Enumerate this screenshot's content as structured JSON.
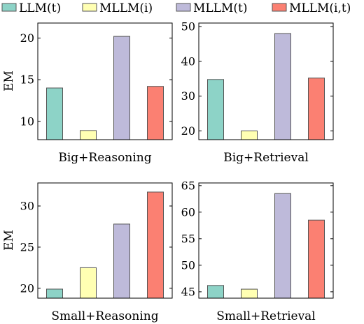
{
  "legend": {
    "entries": [
      {
        "label": "LLM(t)",
        "color": "#8dd3c7"
      },
      {
        "label": "MLLM(i)",
        "color": "#ffffb3"
      },
      {
        "label": "MLLM(t)",
        "color": "#bebada"
      },
      {
        "label": "MLLM(i,t)",
        "color": "#fb8072"
      }
    ]
  },
  "chart_data": [
    {
      "type": "bar",
      "xlabel": "Big+Reasoning",
      "ylabel": "EM",
      "categories": [
        "LLM(t)",
        "MLLM(i)",
        "MLLM(t)",
        "MLLM(i,t)"
      ],
      "values": [
        14.0,
        8.9,
        20.2,
        14.2
      ],
      "ylim": [
        7.8,
        21.8
      ],
      "yticks": [
        10,
        15,
        20
      ]
    },
    {
      "type": "bar",
      "xlabel": "Big+Retrieval",
      "ylabel": "",
      "categories": [
        "LLM(t)",
        "MLLM(i)",
        "MLLM(t)",
        "MLLM(i,t)"
      ],
      "values": [
        34.8,
        20.0,
        48.0,
        35.2
      ],
      "ylim": [
        17.5,
        51.0
      ],
      "yticks": [
        20,
        30,
        40,
        50
      ]
    },
    {
      "type": "bar",
      "xlabel": "Small+Reasoning",
      "ylabel": "EM",
      "categories": [
        "LLM(t)",
        "MLLM(i)",
        "MLLM(t)",
        "MLLM(i,t)"
      ],
      "values": [
        19.9,
        22.5,
        27.8,
        31.7
      ],
      "ylim": [
        18.8,
        32.8
      ],
      "yticks": [
        20,
        25,
        30
      ]
    },
    {
      "type": "bar",
      "xlabel": "Small+Retrieval",
      "ylabel": "",
      "categories": [
        "LLM(t)",
        "MLLM(i)",
        "MLLM(t)",
        "MLLM(i,t)"
      ],
      "values": [
        46.2,
        45.5,
        63.5,
        58.5
      ],
      "ylim": [
        43.8,
        65.5
      ],
      "yticks": [
        45,
        50,
        55,
        60,
        65
      ]
    }
  ]
}
